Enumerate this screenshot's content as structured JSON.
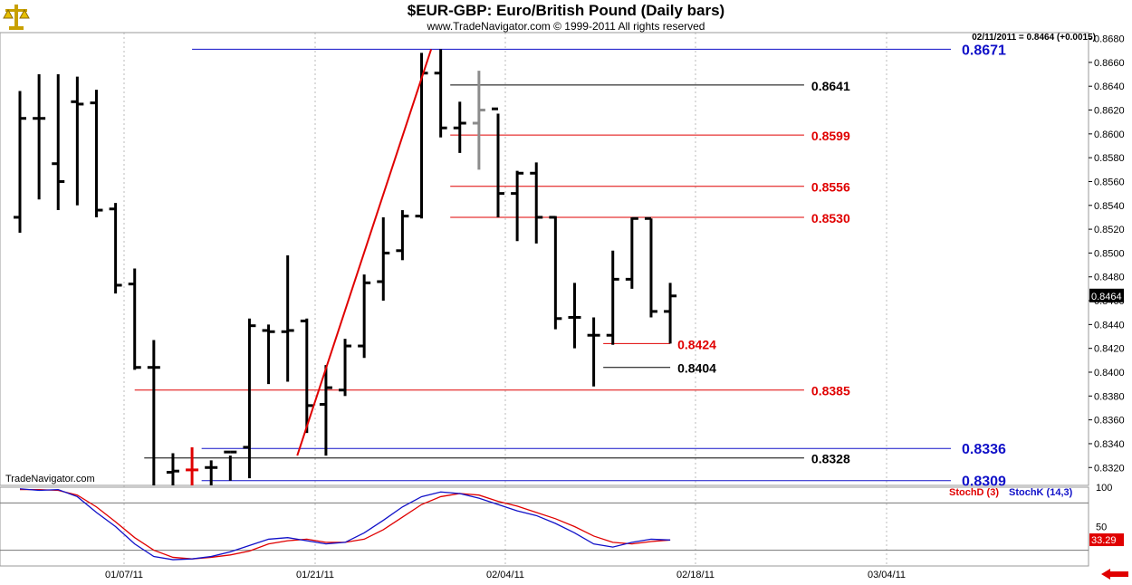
{
  "header": {
    "title": "$EUR-GBP:  Euro/British Pound  (Daily bars)",
    "subtitle": "www.TradeNavigator.com © 1999-2011 All rights reserved",
    "readout": "02/11/2011 = 0.8464 (+0.0015)",
    "watermark": "TradeNavigator.com"
  },
  "icons": {
    "logo": "scales-logo-icon",
    "nav": "left-arrow-icon"
  },
  "colors": {
    "up": "#000000",
    "highlight_red": "#e00000",
    "gray": "#8c8c8c",
    "blue": "#1010c8",
    "red": "#e00000",
    "black": "#000000"
  },
  "chart_data": {
    "type": "ohlc",
    "price_axis": {
      "ylim": [
        0.8305,
        0.8685
      ],
      "ticks": [
        "0.8680",
        "0.8660",
        "0.8640",
        "0.8620",
        "0.8600",
        "0.8580",
        "0.8560",
        "0.8540",
        "0.8520",
        "0.8500",
        "0.8480",
        "0.8460",
        "0.8440",
        "0.8420",
        "0.8400",
        "0.8380",
        "0.8360",
        "0.8340",
        "0.8320"
      ]
    },
    "last_price_label": "0.8464",
    "x_dates": [
      "01/07/11",
      "01/21/11",
      "02/04/11",
      "02/18/11",
      "03/04/11"
    ],
    "bars": [
      {
        "o": 0.853,
        "h": 0.8636,
        "l": 0.8517,
        "c": 0.8613,
        "col": "black"
      },
      {
        "o": 0.8613,
        "h": 0.865,
        "l": 0.8545,
        "c": 0.8613,
        "col": "black"
      },
      {
        "o": 0.8575,
        "h": 0.865,
        "l": 0.8536,
        "c": 0.856,
        "col": "black"
      },
      {
        "o": 0.8627,
        "h": 0.8648,
        "l": 0.854,
        "c": 0.8625,
        "col": "black"
      },
      {
        "o": 0.8626,
        "h": 0.8637,
        "l": 0.853,
        "c": 0.8536,
        "col": "black"
      },
      {
        "o": 0.8537,
        "h": 0.8542,
        "l": 0.8466,
        "c": 0.8473,
        "col": "black"
      },
      {
        "o": 0.8474,
        "h": 0.8487,
        "l": 0.8402,
        "c": 0.8404,
        "col": "black"
      },
      {
        "o": 0.8404,
        "h": 0.8427,
        "l": 0.8305,
        "c": 0.8404,
        "col": "black"
      },
      {
        "o": 0.8316,
        "h": 0.8332,
        "l": 0.8305,
        "c": 0.8317,
        "col": "black"
      },
      {
        "o": 0.8318,
        "h": 0.8337,
        "l": 0.8305,
        "c": 0.8318,
        "col": "red"
      },
      {
        "o": 0.832,
        "h": 0.8326,
        "l": 0.8305,
        "c": 0.832,
        "col": "black"
      },
      {
        "o": 0.8333,
        "h": 0.833,
        "l": 0.8309,
        "c": 0.8333,
        "col": "black"
      },
      {
        "o": 0.8337,
        "h": 0.8445,
        "l": 0.8311,
        "c": 0.8439,
        "col": "black"
      },
      {
        "o": 0.8435,
        "h": 0.844,
        "l": 0.839,
        "c": 0.8434,
        "col": "black"
      },
      {
        "o": 0.8434,
        "h": 0.8498,
        "l": 0.8392,
        "c": 0.8435,
        "col": "black"
      },
      {
        "o": 0.8443,
        "h": 0.8445,
        "l": 0.8349,
        "c": 0.8372,
        "col": "black"
      },
      {
        "o": 0.8373,
        "h": 0.8406,
        "l": 0.833,
        "c": 0.8387,
        "col": "black"
      },
      {
        "o": 0.8385,
        "h": 0.8428,
        "l": 0.838,
        "c": 0.8422,
        "col": "black"
      },
      {
        "o": 0.8422,
        "h": 0.8482,
        "l": 0.8412,
        "c": 0.8475,
        "col": "black"
      },
      {
        "o": 0.8476,
        "h": 0.853,
        "l": 0.846,
        "c": 0.85,
        "col": "black"
      },
      {
        "o": 0.8502,
        "h": 0.8536,
        "l": 0.8494,
        "c": 0.8531,
        "col": "black"
      },
      {
        "o": 0.8531,
        "h": 0.8668,
        "l": 0.8529,
        "c": 0.8651,
        "col": "black"
      },
      {
        "o": 0.8651,
        "h": 0.8671,
        "l": 0.8597,
        "c": 0.8605,
        "col": "black"
      },
      {
        "o": 0.8605,
        "h": 0.8627,
        "l": 0.8584,
        "c": 0.8609,
        "col": "black"
      },
      {
        "o": 0.8609,
        "h": 0.8653,
        "l": 0.857,
        "c": 0.862,
        "col": "gray"
      },
      {
        "o": 0.8621,
        "h": 0.8617,
        "l": 0.853,
        "c": 0.855,
        "col": "black"
      },
      {
        "o": 0.855,
        "h": 0.8569,
        "l": 0.851,
        "c": 0.8567,
        "col": "black"
      },
      {
        "o": 0.8567,
        "h": 0.8576,
        "l": 0.8508,
        "c": 0.853,
        "col": "black"
      },
      {
        "o": 0.853,
        "h": 0.8531,
        "l": 0.8436,
        "c": 0.8445,
        "col": "black"
      },
      {
        "o": 0.8446,
        "h": 0.8475,
        "l": 0.842,
        "c": 0.8446,
        "col": "black"
      },
      {
        "o": 0.8431,
        "h": 0.8446,
        "l": 0.8388,
        "c": 0.8431,
        "col": "black"
      },
      {
        "o": 0.8431,
        "h": 0.8502,
        "l": 0.8423,
        "c": 0.8478,
        "col": "black"
      },
      {
        "o": 0.8478,
        "h": 0.853,
        "l": 0.847,
        "c": 0.8529,
        "col": "black"
      },
      {
        "o": 0.8529,
        "h": 0.8529,
        "l": 0.8446,
        "c": 0.8451,
        "col": "black"
      },
      {
        "o": 0.8451,
        "h": 0.8475,
        "l": 0.8424,
        "c": 0.8464,
        "col": "black"
      }
    ],
    "levels": [
      {
        "value": 0.8671,
        "label": "0.8671",
        "color": "blue",
        "x1": 9,
        "x2": 50
      },
      {
        "value": 0.8641,
        "label": "0.8641",
        "color": "black",
        "x1": 22.5,
        "x2": 41
      },
      {
        "value": 0.8599,
        "label": "0.8599",
        "color": "red",
        "x1": 22.5,
        "x2": 41
      },
      {
        "value": 0.8556,
        "label": "0.8556",
        "color": "red",
        "x1": 22.5,
        "x2": 41
      },
      {
        "value": 0.853,
        "label": "0.8530",
        "color": "red",
        "x1": 22.5,
        "x2": 41
      },
      {
        "value": 0.8424,
        "label": "0.8424",
        "color": "red",
        "x1": 30.5,
        "x2": 34
      },
      {
        "value": 0.8404,
        "label": "0.8404",
        "color": "black",
        "x1": 30.5,
        "x2": 34
      },
      {
        "value": 0.8385,
        "label": "0.8385",
        "color": "red",
        "x1": 6,
        "x2": 41
      },
      {
        "value": 0.8336,
        "label": "0.8336",
        "color": "blue",
        "x1": 9.5,
        "x2": 50
      },
      {
        "value": 0.8328,
        "label": "0.8328",
        "color": "black",
        "x1": 6.5,
        "x2": 41
      },
      {
        "value": 0.8309,
        "label": "0.8309",
        "color": "blue",
        "x1": 9.5,
        "x2": 50
      }
    ],
    "trendline": {
      "from": {
        "bar": 14.5,
        "value": 0.833
      },
      "to": {
        "bar": 21.5,
        "value": 0.8671
      },
      "color": "red"
    },
    "stochastic": {
      "legend": [
        "StochD (3)",
        "StochK (14,3)"
      ],
      "ylim": [
        0,
        100
      ],
      "ticks": [
        "100",
        "50"
      ],
      "levels": [
        80,
        20
      ],
      "last_value": "33.29",
      "stochK": [
        98,
        96,
        97,
        88,
        68,
        50,
        28,
        12,
        8,
        9,
        12,
        18,
        26,
        34,
        36,
        32,
        28,
        30,
        42,
        58,
        75,
        88,
        94,
        92,
        86,
        78,
        70,
        64,
        54,
        42,
        28,
        24,
        30,
        34,
        33
      ],
      "stochD": [
        97,
        97,
        96,
        90,
        75,
        56,
        36,
        20,
        11,
        9,
        11,
        14,
        19,
        28,
        32,
        34,
        30,
        30,
        34,
        46,
        62,
        78,
        88,
        92,
        90,
        82,
        76,
        68,
        60,
        50,
        38,
        30,
        28,
        31,
        33
      ]
    }
  }
}
